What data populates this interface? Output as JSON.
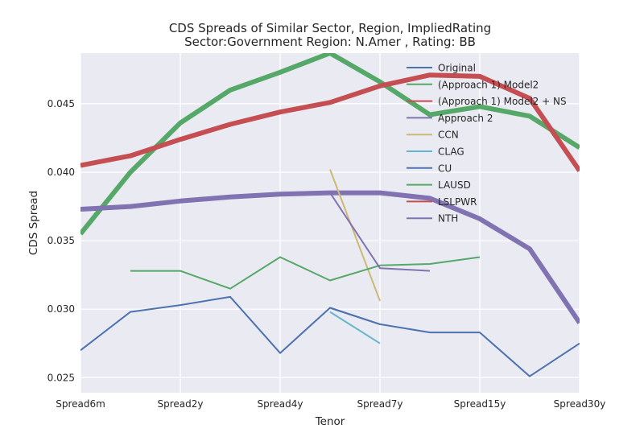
{
  "chart_data": {
    "type": "line",
    "title": "CDS Spreads of Similar Sector, Region, ImpliedRating",
    "subtitle": "Sector:Government Region: N.Amer , Rating: BB",
    "xlabel": "Tenor",
    "ylabel": "CDS Spread",
    "x_tick_labels": [
      "Spread6m",
      "Spread2y",
      "Spread4y",
      "Spread7y",
      "Spread15y",
      "Spread30y"
    ],
    "x_tick_positions": [
      0,
      2,
      4,
      6,
      8,
      10
    ],
    "xlim": [
      0,
      10
    ],
    "ylim": [
      0.0239,
      0.0487
    ],
    "y_ticks": [
      0.025,
      0.03,
      0.035,
      0.04,
      0.045
    ],
    "y_tick_labels": [
      "0.025",
      "0.030",
      "0.035",
      "0.040",
      "0.045"
    ],
    "grid": true,
    "legend_position": "top-right",
    "series": [
      {
        "name": "Original",
        "color": "#4c72b0",
        "width": 2,
        "points": [
          [
            0,
            0.027
          ],
          [
            1,
            0.0298
          ],
          [
            2,
            0.0303
          ],
          [
            3,
            0.0309
          ],
          [
            4,
            0.0268
          ],
          [
            5,
            0.0301
          ],
          [
            6,
            0.0289
          ],
          [
            7,
            0.0283
          ],
          [
            8,
            0.0283
          ],
          [
            9,
            0.0251
          ],
          [
            10,
            0.0275
          ]
        ]
      },
      {
        "name": "(Approach 1) Model2",
        "color": "#55a868",
        "width": 6,
        "points": [
          [
            0,
            0.0355
          ],
          [
            1,
            0.04
          ],
          [
            2,
            0.0436
          ],
          [
            3,
            0.046
          ],
          [
            4,
            0.0473
          ],
          [
            5,
            0.0487
          ],
          [
            6,
            0.0466
          ],
          [
            7,
            0.0442
          ],
          [
            8,
            0.0448
          ],
          [
            9,
            0.0441
          ],
          [
            10,
            0.0418
          ]
        ]
      },
      {
        "name": "(Approach 1) Model2 + NS",
        "color": "#c44e52",
        "width": 6,
        "points": [
          [
            0,
            0.0405
          ],
          [
            1,
            0.0412
          ],
          [
            2,
            0.0424
          ],
          [
            3,
            0.0435
          ],
          [
            4,
            0.0444
          ],
          [
            5,
            0.0451
          ],
          [
            6,
            0.0463
          ],
          [
            7,
            0.0471
          ],
          [
            8,
            0.047
          ],
          [
            9,
            0.0454
          ],
          [
            10,
            0.0401
          ]
        ]
      },
      {
        "name": "Approach 2",
        "color": "#8172b2",
        "width": 6,
        "points": [
          [
            0,
            0.0373
          ],
          [
            1,
            0.0375
          ],
          [
            2,
            0.0379
          ],
          [
            3,
            0.0382
          ],
          [
            4,
            0.0384
          ],
          [
            5,
            0.0385
          ],
          [
            6,
            0.0385
          ],
          [
            7,
            0.0381
          ],
          [
            8,
            0.0366
          ],
          [
            9,
            0.0344
          ],
          [
            10,
            0.029
          ]
        ]
      },
      {
        "name": "CCN",
        "color": "#ccb974",
        "width": 2,
        "points": [
          [
            5,
            0.0402
          ],
          [
            6,
            0.0306
          ]
        ]
      },
      {
        "name": "CLAG",
        "color": "#64b5cd",
        "width": 2,
        "points": [
          [
            5,
            0.0298
          ],
          [
            6,
            0.0275
          ]
        ]
      },
      {
        "name": "CU",
        "color": "#4c72b0",
        "width": 2,
        "points": [
          [
            5,
            0.0301
          ],
          [
            6,
            0.0289
          ]
        ]
      },
      {
        "name": "LAUSD",
        "color": "#55a868",
        "width": 2,
        "points": [
          [
            1,
            0.0328
          ],
          [
            2,
            0.0328
          ],
          [
            3,
            0.0315
          ],
          [
            4,
            0.0338
          ],
          [
            5,
            0.0321
          ],
          [
            6,
            0.0332
          ],
          [
            7,
            0.0333
          ],
          [
            8,
            0.0338
          ]
        ]
      },
      {
        "name": "LSLPWR",
        "color": "#c44e52",
        "width": 2,
        "points": []
      },
      {
        "name": "NTH",
        "color": "#8172b2",
        "width": 2,
        "points": [
          [
            5,
            0.0385
          ],
          [
            6,
            0.033
          ],
          [
            7,
            0.0328
          ]
        ]
      }
    ]
  }
}
